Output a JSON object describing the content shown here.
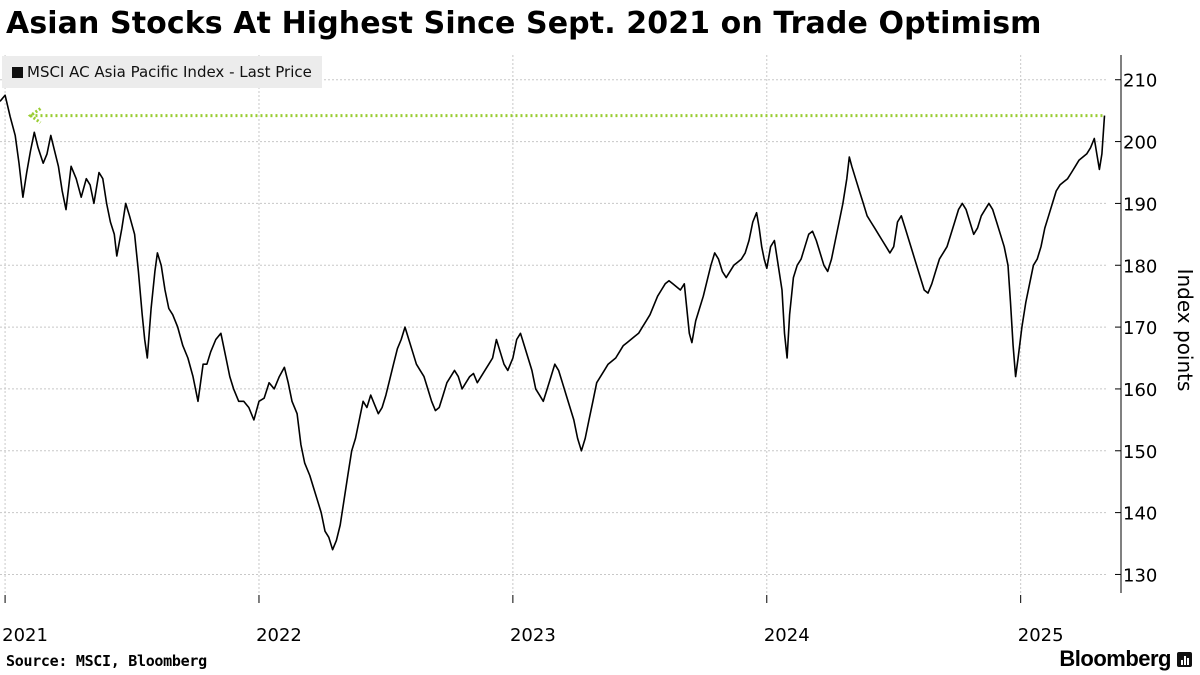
{
  "title": "Asian Stocks At Highest Since Sept. 2021 on Trade Optimism",
  "source": "Source: MSCI, Bloomberg",
  "brand": "Bloomberg",
  "colors": {
    "line": "#000000",
    "reference": "#9acd32",
    "grid": "#c8c8c8",
    "legend_bg": "#ececec"
  },
  "icons": {
    "legend": "square-swatch",
    "brand": "bar-chart-icon"
  },
  "chart_data": {
    "type": "line",
    "title": "Asian Stocks At Highest Since Sept. 2021 on Trade Optimism",
    "ylabel": "Index points",
    "ylim": [
      127,
      214
    ],
    "xlim": [
      2020.98,
      2025.34
    ],
    "grid": true,
    "legend_position": "top-left",
    "y_axis_side": "right",
    "yticks": [
      130,
      140,
      150,
      160,
      170,
      180,
      190,
      200,
      210
    ],
    "xticks": [
      {
        "value": 2021,
        "label": "2021"
      },
      {
        "value": 2022,
        "label": "2022"
      },
      {
        "value": 2023,
        "label": "2023"
      },
      {
        "value": 2024,
        "label": "2024"
      },
      {
        "value": 2025,
        "label": "2025"
      }
    ],
    "reference_line": {
      "value": 204.2,
      "x_from": 2021.1,
      "x_to": 2025.33,
      "style": "dotted",
      "arrow": "left"
    },
    "series": [
      {
        "name": "MSCI AC Asia Pacific Index - Last Price",
        "points": [
          [
            2020.98,
            206.5
          ],
          [
            2021.0,
            207.5
          ],
          [
            2021.02,
            204
          ],
          [
            2021.04,
            201
          ],
          [
            2021.055,
            196.5
          ],
          [
            2021.07,
            191
          ],
          [
            2021.085,
            195
          ],
          [
            2021.1,
            198.5
          ],
          [
            2021.115,
            201.5
          ],
          [
            2021.13,
            199
          ],
          [
            2021.15,
            196.5
          ],
          [
            2021.165,
            198
          ],
          [
            2021.18,
            201
          ],
          [
            2021.195,
            198.5
          ],
          [
            2021.21,
            196
          ],
          [
            2021.225,
            192
          ],
          [
            2021.24,
            189
          ],
          [
            2021.26,
            196
          ],
          [
            2021.28,
            194
          ],
          [
            2021.3,
            191
          ],
          [
            2021.32,
            194
          ],
          [
            2021.335,
            193
          ],
          [
            2021.35,
            190
          ],
          [
            2021.37,
            195
          ],
          [
            2021.385,
            194
          ],
          [
            2021.4,
            190
          ],
          [
            2021.415,
            187
          ],
          [
            2021.43,
            185
          ],
          [
            2021.44,
            181.5
          ],
          [
            2021.46,
            186
          ],
          [
            2021.475,
            190
          ],
          [
            2021.49,
            188
          ],
          [
            2021.51,
            185
          ],
          [
            2021.525,
            179
          ],
          [
            2021.54,
            172
          ],
          [
            2021.55,
            168
          ],
          [
            2021.56,
            165
          ],
          [
            2021.575,
            173
          ],
          [
            2021.59,
            179
          ],
          [
            2021.6,
            182
          ],
          [
            2021.615,
            180
          ],
          [
            2021.63,
            176
          ],
          [
            2021.645,
            173
          ],
          [
            2021.66,
            172
          ],
          [
            2021.68,
            170
          ],
          [
            2021.7,
            167
          ],
          [
            2021.72,
            165
          ],
          [
            2021.74,
            162
          ],
          [
            2021.76,
            158
          ],
          [
            2021.78,
            164
          ],
          [
            2021.795,
            164
          ],
          [
            2021.81,
            166
          ],
          [
            2021.83,
            168
          ],
          [
            2021.85,
            169
          ],
          [
            2021.87,
            165
          ],
          [
            2021.885,
            162
          ],
          [
            2021.9,
            160
          ],
          [
            2021.92,
            158
          ],
          [
            2021.94,
            158
          ],
          [
            2021.96,
            157
          ],
          [
            2021.98,
            155
          ],
          [
            2022.0,
            158
          ],
          [
            2022.02,
            158.5
          ],
          [
            2022.04,
            161
          ],
          [
            2022.06,
            160
          ],
          [
            2022.08,
            162
          ],
          [
            2022.1,
            163.5
          ],
          [
            2022.115,
            161
          ],
          [
            2022.13,
            158
          ],
          [
            2022.15,
            156
          ],
          [
            2022.165,
            151
          ],
          [
            2022.18,
            148
          ],
          [
            2022.2,
            146
          ],
          [
            2022.215,
            144
          ],
          [
            2022.23,
            142
          ],
          [
            2022.245,
            140
          ],
          [
            2022.26,
            137
          ],
          [
            2022.275,
            136
          ],
          [
            2022.29,
            134
          ],
          [
            2022.305,
            135.5
          ],
          [
            2022.32,
            138
          ],
          [
            2022.335,
            142
          ],
          [
            2022.35,
            146
          ],
          [
            2022.365,
            150
          ],
          [
            2022.38,
            152
          ],
          [
            2022.395,
            155
          ],
          [
            2022.41,
            158
          ],
          [
            2022.425,
            157
          ],
          [
            2022.44,
            159
          ],
          [
            2022.455,
            157.5
          ],
          [
            2022.47,
            156
          ],
          [
            2022.485,
            157
          ],
          [
            2022.5,
            159
          ],
          [
            2022.515,
            161.5
          ],
          [
            2022.53,
            164
          ],
          [
            2022.545,
            166.5
          ],
          [
            2022.56,
            168
          ],
          [
            2022.575,
            170
          ],
          [
            2022.59,
            168
          ],
          [
            2022.605,
            166
          ],
          [
            2022.62,
            164
          ],
          [
            2022.635,
            163
          ],
          [
            2022.65,
            162
          ],
          [
            2022.665,
            160
          ],
          [
            2022.68,
            158
          ],
          [
            2022.695,
            156.5
          ],
          [
            2022.71,
            157
          ],
          [
            2022.725,
            159
          ],
          [
            2022.74,
            161
          ],
          [
            2022.755,
            162
          ],
          [
            2022.77,
            163
          ],
          [
            2022.785,
            162
          ],
          [
            2022.8,
            160
          ],
          [
            2022.815,
            161
          ],
          [
            2022.83,
            162
          ],
          [
            2022.845,
            162.5
          ],
          [
            2022.86,
            161
          ],
          [
            2022.875,
            162
          ],
          [
            2022.89,
            163
          ],
          [
            2022.905,
            164
          ],
          [
            2022.92,
            165
          ],
          [
            2022.935,
            168
          ],
          [
            2022.95,
            166
          ],
          [
            2022.965,
            164
          ],
          [
            2022.98,
            163
          ],
          [
            2023.0,
            165
          ],
          [
            2023.015,
            168
          ],
          [
            2023.03,
            169
          ],
          [
            2023.045,
            167
          ],
          [
            2023.06,
            165
          ],
          [
            2023.075,
            163
          ],
          [
            2023.09,
            160
          ],
          [
            2023.105,
            159
          ],
          [
            2023.12,
            158
          ],
          [
            2023.135,
            160
          ],
          [
            2023.15,
            162
          ],
          [
            2023.165,
            164
          ],
          [
            2023.18,
            163
          ],
          [
            2023.195,
            161
          ],
          [
            2023.21,
            159
          ],
          [
            2023.225,
            157
          ],
          [
            2023.24,
            155
          ],
          [
            2023.255,
            152
          ],
          [
            2023.27,
            150
          ],
          [
            2023.285,
            152
          ],
          [
            2023.3,
            155
          ],
          [
            2023.315,
            158
          ],
          [
            2023.33,
            161
          ],
          [
            2023.345,
            162
          ],
          [
            2023.36,
            163
          ],
          [
            2023.375,
            164
          ],
          [
            2023.39,
            164.5
          ],
          [
            2023.405,
            165
          ],
          [
            2023.42,
            166
          ],
          [
            2023.435,
            167
          ],
          [
            2023.45,
            167.5
          ],
          [
            2023.465,
            168
          ],
          [
            2023.48,
            168.5
          ],
          [
            2023.495,
            169
          ],
          [
            2023.51,
            170
          ],
          [
            2023.525,
            171
          ],
          [
            2023.54,
            172
          ],
          [
            2023.555,
            173.5
          ],
          [
            2023.57,
            175
          ],
          [
            2023.585,
            176
          ],
          [
            2023.6,
            177
          ],
          [
            2023.615,
            177.5
          ],
          [
            2023.63,
            177
          ],
          [
            2023.645,
            176.5
          ],
          [
            2023.66,
            176
          ],
          [
            2023.675,
            177
          ],
          [
            2023.685,
            173
          ],
          [
            2023.695,
            169
          ],
          [
            2023.705,
            167.5
          ],
          [
            2023.72,
            171
          ],
          [
            2023.735,
            173
          ],
          [
            2023.75,
            175
          ],
          [
            2023.765,
            177.5
          ],
          [
            2023.78,
            180
          ],
          [
            2023.795,
            182
          ],
          [
            2023.81,
            181
          ],
          [
            2023.825,
            179
          ],
          [
            2023.84,
            178
          ],
          [
            2023.855,
            179
          ],
          [
            2023.87,
            180
          ],
          [
            2023.885,
            180.5
          ],
          [
            2023.9,
            181
          ],
          [
            2023.915,
            182
          ],
          [
            2023.93,
            184
          ],
          [
            2023.945,
            187
          ],
          [
            2023.96,
            188.5
          ],
          [
            2023.97,
            186
          ],
          [
            2023.98,
            183
          ],
          [
            2023.99,
            181
          ],
          [
            2024.0,
            179.5
          ],
          [
            2024.015,
            183
          ],
          [
            2024.03,
            184
          ],
          [
            2024.045,
            180
          ],
          [
            2024.06,
            176
          ],
          [
            2024.07,
            169
          ],
          [
            2024.08,
            165
          ],
          [
            2024.09,
            172
          ],
          [
            2024.105,
            178
          ],
          [
            2024.12,
            180
          ],
          [
            2024.135,
            181
          ],
          [
            2024.15,
            183
          ],
          [
            2024.165,
            185
          ],
          [
            2024.18,
            185.5
          ],
          [
            2024.195,
            184
          ],
          [
            2024.21,
            182
          ],
          [
            2024.225,
            180
          ],
          [
            2024.24,
            179
          ],
          [
            2024.255,
            181
          ],
          [
            2024.27,
            184
          ],
          [
            2024.285,
            187
          ],
          [
            2024.3,
            190
          ],
          [
            2024.315,
            194
          ],
          [
            2024.325,
            197.5
          ],
          [
            2024.335,
            196
          ],
          [
            2024.35,
            194
          ],
          [
            2024.365,
            192
          ],
          [
            2024.38,
            190
          ],
          [
            2024.395,
            188
          ],
          [
            2024.41,
            187
          ],
          [
            2024.425,
            186
          ],
          [
            2024.44,
            185
          ],
          [
            2024.455,
            184
          ],
          [
            2024.47,
            183
          ],
          [
            2024.485,
            182
          ],
          [
            2024.5,
            183
          ],
          [
            2024.515,
            187
          ],
          [
            2024.53,
            188
          ],
          [
            2024.545,
            186
          ],
          [
            2024.56,
            184
          ],
          [
            2024.575,
            182
          ],
          [
            2024.59,
            180
          ],
          [
            2024.605,
            178
          ],
          [
            2024.62,
            176
          ],
          [
            2024.635,
            175.5
          ],
          [
            2024.65,
            177
          ],
          [
            2024.665,
            179
          ],
          [
            2024.68,
            181
          ],
          [
            2024.695,
            182
          ],
          [
            2024.71,
            183
          ],
          [
            2024.725,
            185
          ],
          [
            2024.74,
            187
          ],
          [
            2024.755,
            189
          ],
          [
            2024.77,
            190
          ],
          [
            2024.785,
            189
          ],
          [
            2024.8,
            187
          ],
          [
            2024.815,
            185
          ],
          [
            2024.83,
            186
          ],
          [
            2024.845,
            188
          ],
          [
            2024.86,
            189
          ],
          [
            2024.875,
            190
          ],
          [
            2024.89,
            189
          ],
          [
            2024.905,
            187
          ],
          [
            2024.92,
            185
          ],
          [
            2024.935,
            183
          ],
          [
            2024.95,
            180
          ],
          [
            2024.96,
            174
          ],
          [
            2024.97,
            167
          ],
          [
            2024.98,
            162
          ],
          [
            2024.99,
            165
          ],
          [
            2025.005,
            170
          ],
          [
            2025.02,
            174
          ],
          [
            2025.035,
            177
          ],
          [
            2025.05,
            180
          ],
          [
            2025.065,
            181
          ],
          [
            2025.08,
            183
          ],
          [
            2025.095,
            186
          ],
          [
            2025.11,
            188
          ],
          [
            2025.125,
            190
          ],
          [
            2025.14,
            192
          ],
          [
            2025.155,
            193
          ],
          [
            2025.17,
            193.5
          ],
          [
            2025.185,
            194
          ],
          [
            2025.2,
            195
          ],
          [
            2025.215,
            196
          ],
          [
            2025.23,
            197
          ],
          [
            2025.245,
            197.5
          ],
          [
            2025.26,
            198
          ],
          [
            2025.275,
            199
          ],
          [
            2025.29,
            200.5
          ],
          [
            2025.3,
            198
          ],
          [
            2025.31,
            195.5
          ],
          [
            2025.32,
            198
          ],
          [
            2025.33,
            204.2
          ]
        ]
      }
    ]
  }
}
